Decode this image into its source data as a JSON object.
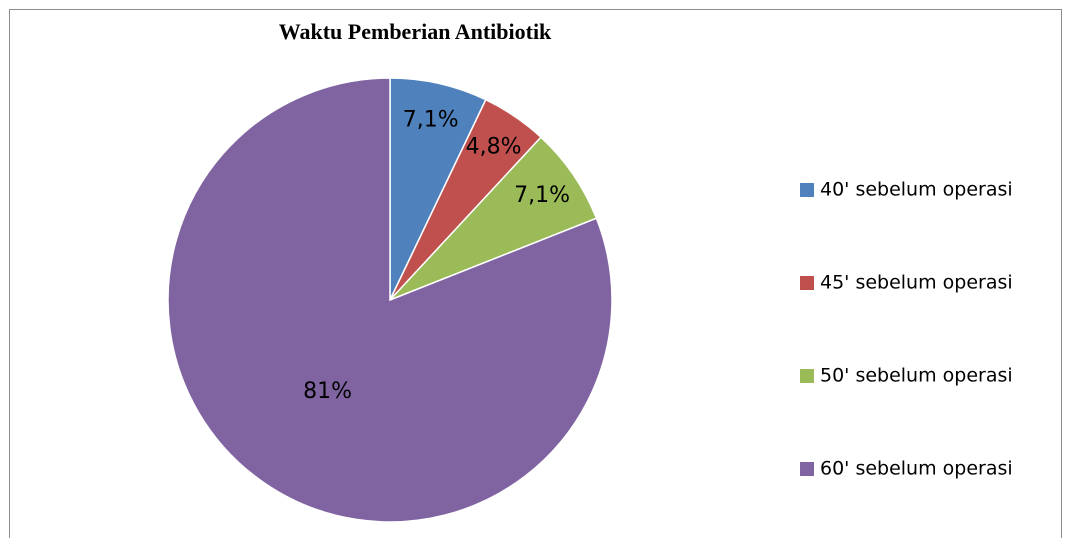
{
  "chart_data": {
    "type": "pie",
    "title": "Waktu Pemberian Antibiotik",
    "categories": [
      "40' sebelum operasi",
      "45' sebelum operasi",
      "50' sebelum operasi",
      "60' sebelum operasi"
    ],
    "values": [
      7.1,
      4.8,
      7.1,
      81
    ],
    "value_labels": [
      "7,1%",
      "4,8%",
      "7,1%",
      "81%"
    ],
    "colors": [
      "#4f81bd",
      "#c0504d",
      "#9bbb59",
      "#8064a2"
    ],
    "legend": "right"
  }
}
